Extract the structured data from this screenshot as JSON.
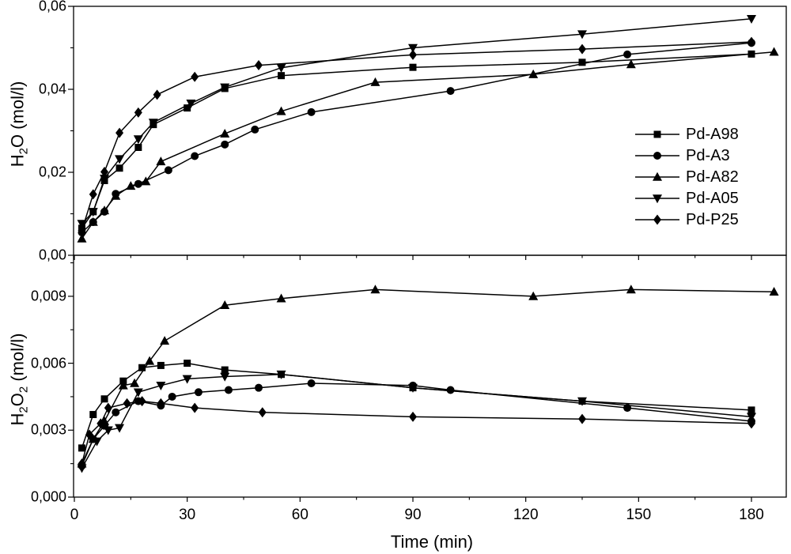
{
  "figure": {
    "background": "#ffffff",
    "ink_color": "#000000"
  },
  "x_axis": {
    "label": "Time (min)",
    "range": [
      0,
      190
    ],
    "ticks": [
      0,
      30,
      60,
      90,
      120,
      150,
      180
    ],
    "tick_labels": [
      "0",
      "30",
      "60",
      "90",
      "120",
      "150",
      "180"
    ],
    "minor_ticks": [
      15,
      45,
      75,
      105,
      135,
      165
    ]
  },
  "legend": {
    "position": "middle-right",
    "entries": [
      {
        "label": "Pd-A98",
        "marker": "square"
      },
      {
        "label": "Pd-A3",
        "marker": "circle"
      },
      {
        "label": "Pd-A82",
        "marker": "triangle-up"
      },
      {
        "label": "Pd-A05",
        "marker": "triangle-down"
      },
      {
        "label": "Pd-P25",
        "marker": "diamond"
      }
    ]
  },
  "chart_data": [
    {
      "type": "line",
      "panel": "top",
      "title": "",
      "xlabel": "Time (min)",
      "ylabel_text": "H2O (mol/l)",
      "ylabel_segments": [
        {
          "text": "H",
          "sub": false
        },
        {
          "text": "2",
          "sub": true
        },
        {
          "text": "O (mol/l)",
          "sub": false
        }
      ],
      "ylim": [
        0,
        0.06
      ],
      "yticks": [
        0,
        0.02,
        0.04,
        0.06
      ],
      "ytick_labels": [
        "0,00",
        "0,02",
        "0,04",
        "0,06"
      ],
      "yminor_ticks": [
        0.01,
        0.03,
        0.05
      ],
      "grid": false,
      "series": [
        {
          "name": "Pd-A98",
          "marker": "square",
          "points": [
            [
              2,
              0.0065
            ],
            [
              5,
              0.0105
            ],
            [
              8,
              0.018
            ],
            [
              12,
              0.021
            ],
            [
              17,
              0.026
            ],
            [
              21,
              0.0315
            ],
            [
              30,
              0.0355
            ],
            [
              40,
              0.0402
            ],
            [
              55,
              0.0433
            ],
            [
              90,
              0.0453
            ],
            [
              135,
              0.0465
            ],
            [
              180,
              0.0485
            ]
          ]
        },
        {
          "name": "Pd-A3",
          "marker": "circle",
          "points": [
            [
              2,
              0.0055
            ],
            [
              5,
              0.008
            ],
            [
              8,
              0.0105
            ],
            [
              11,
              0.0148
            ],
            [
              17,
              0.0172
            ],
            [
              25,
              0.0205
            ],
            [
              32,
              0.0239
            ],
            [
              40,
              0.0267
            ],
            [
              48,
              0.0303
            ],
            [
              63,
              0.0345
            ],
            [
              100,
              0.0396
            ],
            [
              147,
              0.0484
            ],
            [
              180,
              0.0512
            ]
          ]
        },
        {
          "name": "Pd-A82",
          "marker": "triangle-up",
          "points": [
            [
              2,
              0.004
            ],
            [
              5,
              0.008
            ],
            [
              8,
              0.0108
            ],
            [
              11,
              0.0143
            ],
            [
              15,
              0.0167
            ],
            [
              19,
              0.0178
            ],
            [
              23,
              0.0226
            ],
            [
              40,
              0.0293
            ],
            [
              55,
              0.0347
            ],
            [
              80,
              0.0417
            ],
            [
              122,
              0.0436
            ],
            [
              148,
              0.046
            ],
            [
              186,
              0.049
            ]
          ]
        },
        {
          "name": "Pd-A05",
          "marker": "triangle-down",
          "points": [
            [
              2,
              0.0076
            ],
            [
              5,
              0.0105
            ],
            [
              8,
              0.0185
            ],
            [
              12,
              0.0232
            ],
            [
              17,
              0.028
            ],
            [
              21,
              0.032
            ],
            [
              31,
              0.0366
            ],
            [
              40,
              0.0405
            ],
            [
              55,
              0.0452
            ],
            [
              90,
              0.05
            ],
            [
              135,
              0.0533
            ],
            [
              180,
              0.057
            ]
          ]
        },
        {
          "name": "Pd-P25",
          "marker": "diamond",
          "points": [
            [
              2,
              0.006
            ],
            [
              5,
              0.0147
            ],
            [
              8,
              0.0201
            ],
            [
              12,
              0.0295
            ],
            [
              17,
              0.0344
            ],
            [
              22,
              0.0387
            ],
            [
              32,
              0.043
            ],
            [
              49,
              0.0458
            ],
            [
              90,
              0.0483
            ],
            [
              135,
              0.0497
            ],
            [
              180,
              0.0514
            ]
          ]
        }
      ]
    },
    {
      "type": "line",
      "panel": "bottom",
      "title": "",
      "xlabel": "Time (min)",
      "ylabel_text": "H2O2 (mol/l)",
      "ylabel_segments": [
        {
          "text": "H",
          "sub": false
        },
        {
          "text": "2",
          "sub": true
        },
        {
          "text": "O",
          "sub": false
        },
        {
          "text": "2",
          "sub": true
        },
        {
          "text": " (mol/l)",
          "sub": false
        }
      ],
      "ylim": [
        0,
        0.0105
      ],
      "yticks": [
        0,
        0.003,
        0.006,
        0.009
      ],
      "ytick_labels": [
        "0,000",
        "0,003",
        "0,006",
        "0,009"
      ],
      "yminor_ticks": [
        0.0015,
        0.0045,
        0.0075,
        0.0105
      ],
      "grid": false,
      "series": [
        {
          "name": "Pd-A98",
          "marker": "square",
          "points": [
            [
              2,
              0.0022
            ],
            [
              5,
              0.0037
            ],
            [
              8,
              0.0044
            ],
            [
              13,
              0.0052
            ],
            [
              18,
              0.0058
            ],
            [
              23,
              0.0059
            ],
            [
              30,
              0.006
            ],
            [
              40,
              0.0057
            ],
            [
              55,
              0.0055
            ],
            [
              90,
              0.0049
            ],
            [
              135,
              0.0043
            ],
            [
              180,
              0.0039
            ]
          ]
        },
        {
          "name": "Pd-A3",
          "marker": "circle",
          "points": [
            [
              2,
              0.0014
            ],
            [
              5,
              0.0026
            ],
            [
              8,
              0.0032
            ],
            [
              11,
              0.0038
            ],
            [
              17,
              0.0043
            ],
            [
              23,
              0.0041
            ],
            [
              26,
              0.0045
            ],
            [
              33,
              0.0047
            ],
            [
              41,
              0.0048
            ],
            [
              49,
              0.0049
            ],
            [
              63,
              0.0051
            ],
            [
              90,
              0.005
            ],
            [
              100,
              0.0048
            ],
            [
              147,
              0.004
            ],
            [
              180,
              0.0034
            ]
          ]
        },
        {
          "name": "Pd-A82",
          "marker": "triangle-up",
          "points": [
            [
              2,
              0.0015
            ],
            [
              5,
              0.0026
            ],
            [
              8,
              0.0034
            ],
            [
              13,
              0.005
            ],
            [
              16,
              0.0051
            ],
            [
              20,
              0.0061
            ],
            [
              24,
              0.007
            ],
            [
              40,
              0.0086
            ],
            [
              55,
              0.0089
            ],
            [
              80,
              0.0093
            ],
            [
              122,
              0.009
            ],
            [
              148,
              0.0093
            ],
            [
              186,
              0.0092
            ]
          ]
        },
        {
          "name": "Pd-A05",
          "marker": "triangle-down",
          "points": [
            [
              2,
              0.0013
            ],
            [
              6,
              0.0025
            ],
            [
              9,
              0.003
            ],
            [
              12,
              0.0031
            ],
            [
              17,
              0.0047
            ],
            [
              23,
              0.005
            ],
            [
              30,
              0.0053
            ],
            [
              40,
              0.0054
            ],
            [
              55,
              0.0055
            ],
            [
              90,
              0.0049
            ],
            [
              135,
              0.0043
            ],
            [
              180,
              0.0036
            ]
          ]
        },
        {
          "name": "Pd-P25",
          "marker": "diamond",
          "points": [
            [
              2,
              0.0015
            ],
            [
              4,
              0.0028
            ],
            [
              7,
              0.0033
            ],
            [
              9,
              0.004
            ],
            [
              14,
              0.0042
            ],
            [
              18,
              0.0043
            ],
            [
              23,
              0.0042
            ],
            [
              32,
              0.004
            ],
            [
              50,
              0.0038
            ],
            [
              90,
              0.0036
            ],
            [
              135,
              0.0035
            ],
            [
              180,
              0.0033
            ]
          ]
        }
      ]
    }
  ]
}
